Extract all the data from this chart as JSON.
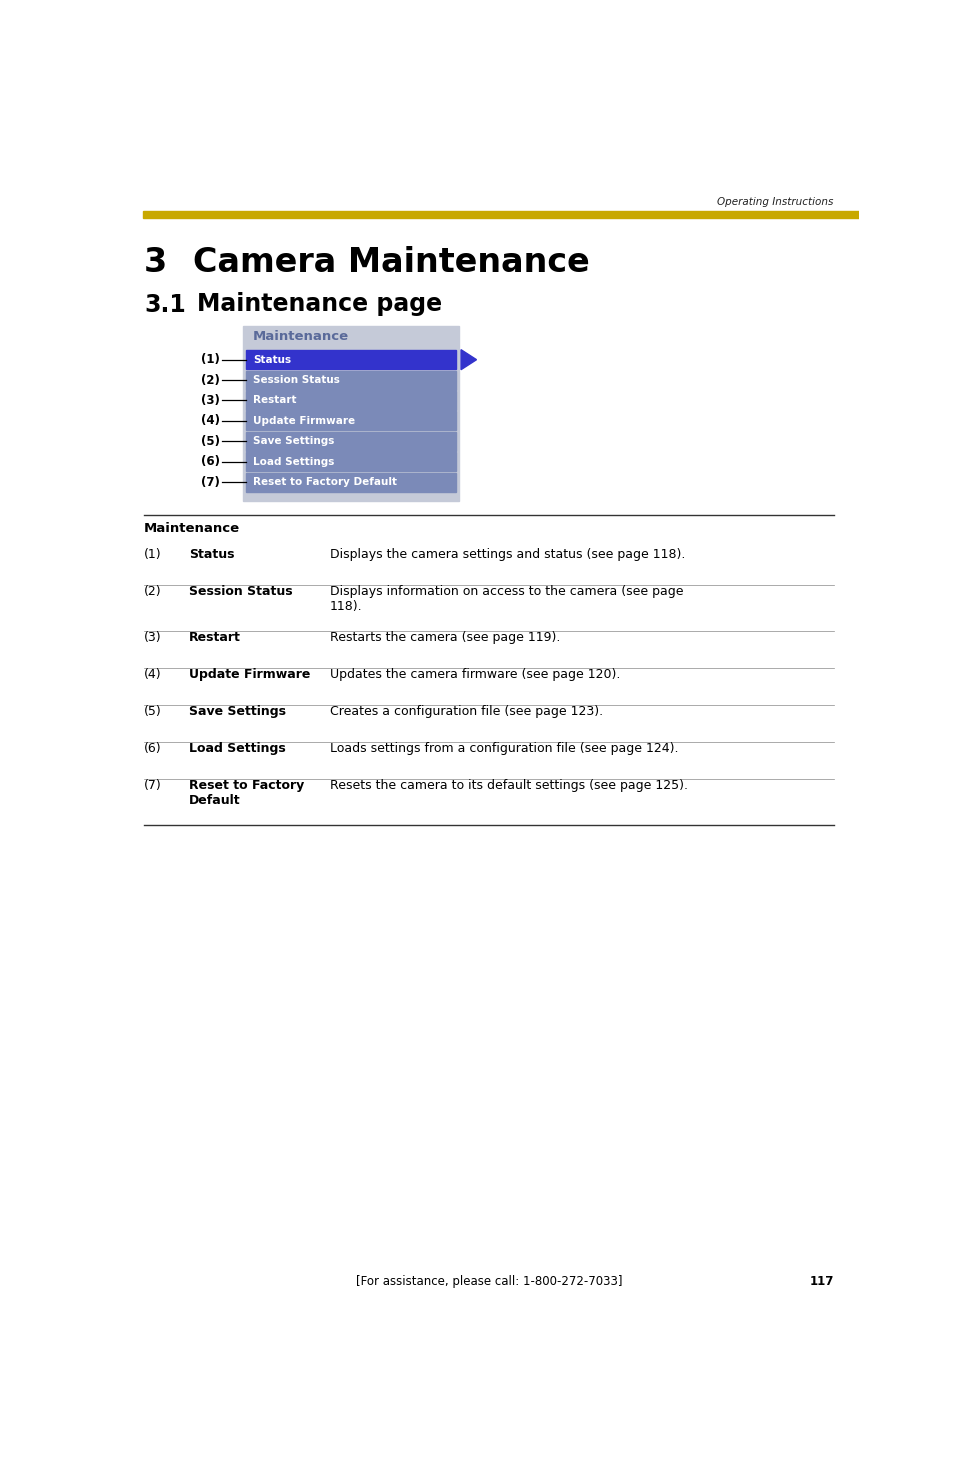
{
  "page_width": 9.54,
  "page_height": 14.75,
  "bg_color": "#ffffff",
  "header_text": "Operating Instructions",
  "header_bar_color": "#C8A800",
  "chapter_number": "3",
  "chapter_title": "Camera Maintenance",
  "section_number": "3.1",
  "section_title": "Maintenance page",
  "menu_title": "Maintenance",
  "menu_bg": "#c5cad8",
  "menu_title_color": "#5a6a9a",
  "menu_selected_bg": "#3333cc",
  "menu_item_bg": "#7b8ab8",
  "menu_items": [
    "Status",
    "Session Status",
    "Restart",
    "Update Firmware",
    "Save Settings",
    "Load Settings",
    "Reset to Factory Default"
  ],
  "arrow_color": "#3333cc",
  "table_header": "Maintenance",
  "table_rows": [
    {
      "num": "(1)",
      "label": "Status",
      "desc": "Displays the camera settings and status (see page 118)."
    },
    {
      "num": "(2)",
      "label": "Session Status",
      "desc": "Displays information on access to the camera (see page\n118)."
    },
    {
      "num": "(3)",
      "label": "Restart",
      "desc": "Restarts the camera (see page 119)."
    },
    {
      "num": "(4)",
      "label": "Update Firmware",
      "desc": "Updates the camera firmware (see page 120)."
    },
    {
      "num": "(5)",
      "label": "Save Settings",
      "desc": "Creates a configuration file (see page 123)."
    },
    {
      "num": "(6)",
      "label": "Load Settings",
      "desc": "Loads settings from a configuration file (see page 124)."
    },
    {
      "num": "(7)",
      "label": "Reset to Factory\nDefault",
      "desc": "Resets the camera to its default settings (see page 125)."
    }
  ],
  "footer_text": "[For assistance, please call: 1-800-272-7033]",
  "page_number": "117"
}
